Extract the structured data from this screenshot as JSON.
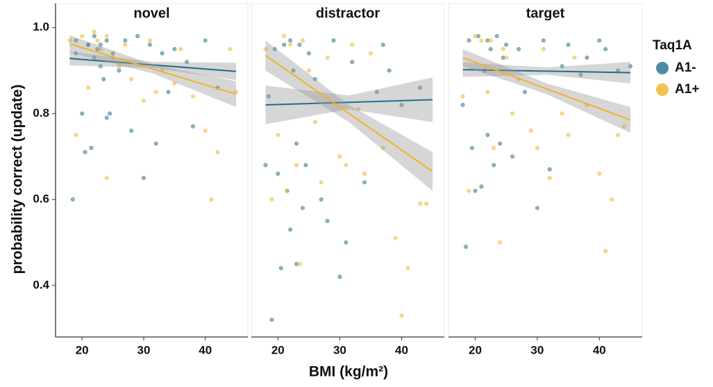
{
  "chart_data": [
    {
      "type": "scatter",
      "title": "novel",
      "xlim": [
        15.7,
        46.9
      ],
      "ylim": [
        0.28,
        1.056
      ],
      "xticks": [
        20,
        30,
        40
      ],
      "yticks": [
        {
          "value": 1.0,
          "label": "1.0"
        },
        0.8,
        0.6,
        0.4
      ],
      "series": [
        {
          "name": "A1-",
          "color": "#1f6e8c",
          "x": [
            18.5,
            19,
            20,
            20.5,
            21,
            21.5,
            22,
            22,
            22.5,
            23,
            23.5,
            24,
            24,
            24.5,
            25,
            26,
            27,
            28,
            29,
            30,
            31,
            32,
            33,
            34,
            35,
            37,
            38,
            40,
            42,
            19,
            21,
            23
          ],
          "values": [
            0.6,
            0.97,
            0.8,
            0.71,
            0.96,
            0.72,
            0.98,
            0.93,
            0.95,
            0.96,
            0.88,
            0.97,
            0.79,
            0.8,
            0.94,
            0.9,
            0.97,
            0.76,
            0.98,
            0.65,
            0.96,
            0.73,
            0.94,
            0.85,
            0.95,
            0.92,
            0.77,
            0.97,
            0.86,
            0.94,
            0.96,
            0.91
          ],
          "fit": {
            "x": [
              18,
              31.5,
              45
            ],
            "y": [
              0.928,
              0.913,
              0.898
            ],
            "lower": [
              0.912,
              0.906,
              0.878
            ],
            "upper": [
              0.944,
              0.92,
              0.918
            ]
          }
        },
        {
          "name": "A1+",
          "color": "#f0b323",
          "x": [
            18,
            19,
            20,
            21,
            22,
            22.5,
            23,
            24,
            24,
            25,
            26,
            27,
            28,
            30,
            31,
            32,
            33,
            35,
            36,
            38,
            40,
            41,
            42,
            44,
            45
          ],
          "values": [
            0.97,
            0.75,
            0.98,
            0.86,
            0.99,
            0.97,
            0.95,
            0.65,
            0.98,
            0.93,
            0.91,
            0.96,
            0.88,
            0.83,
            0.97,
            0.85,
            0.9,
            0.87,
            0.95,
            0.84,
            0.76,
            0.6,
            0.71,
            0.95,
            0.85
          ],
          "fit": {
            "x": [
              18,
              31.5,
              45
            ],
            "y": [
              0.962,
              0.9035,
              0.845
            ],
            "lower": [
              0.942,
              0.893,
              0.815
            ],
            "upper": [
              0.982,
              0.914,
              0.875
            ]
          }
        }
      ]
    },
    {
      "type": "scatter",
      "title": "distractor",
      "xlim": [
        15.7,
        46.9
      ],
      "ylim": [
        0.28,
        1.056
      ],
      "xticks": [
        20,
        30,
        40
      ],
      "series": [
        {
          "name": "A1-",
          "color": "#1f6e8c",
          "x": [
            18,
            18.5,
            19,
            19.5,
            20,
            20.5,
            21,
            21.5,
            22,
            22,
            22.5,
            23,
            23,
            23.5,
            24,
            24.5,
            25,
            26,
            27,
            28,
            29,
            30,
            31,
            32,
            34,
            36,
            37,
            38,
            40,
            43
          ],
          "values": [
            0.68,
            0.84,
            0.32,
            0.95,
            0.66,
            0.44,
            0.96,
            0.62,
            0.97,
            0.53,
            0.9,
            0.73,
            0.45,
            0.96,
            0.58,
            0.68,
            0.94,
            0.88,
            0.6,
            0.55,
            0.97,
            0.42,
            0.5,
            0.92,
            0.64,
            0.85,
            0.96,
            0.9,
            0.82,
            0.86
          ],
          "fit": {
            "x": [
              18,
              31.5,
              45
            ],
            "y": [
              0.82,
              0.826,
              0.832
            ],
            "lower": [
              0.775,
              0.81,
              0.78
            ],
            "upper": [
              0.865,
              0.842,
              0.884
            ]
          }
        },
        {
          "name": "A1+",
          "color": "#f0b323",
          "x": [
            18,
            19,
            20,
            21,
            21.5,
            22,
            23,
            23.5,
            24,
            25,
            26,
            27,
            28,
            30,
            31,
            32,
            33,
            34,
            35,
            37,
            39,
            40,
            41,
            43,
            44
          ],
          "values": [
            0.95,
            0.6,
            0.75,
            0.98,
            0.62,
            0.96,
            0.68,
            0.45,
            0.97,
            0.9,
            0.78,
            0.64,
            0.93,
            0.7,
            0.68,
            0.96,
            0.81,
            0.66,
            0.94,
            0.72,
            0.51,
            0.33,
            0.44,
            0.59,
            0.59
          ],
          "fit": {
            "x": [
              18,
              31.5,
              45
            ],
            "y": [
              0.935,
              0.8,
              0.665
            ],
            "lower": [
              0.9,
              0.78,
              0.62
            ],
            "upper": [
              0.97,
              0.82,
              0.71
            ]
          }
        }
      ]
    },
    {
      "type": "scatter",
      "title": "target",
      "xlim": [
        15.7,
        46.9
      ],
      "ylim": [
        0.28,
        1.056
      ],
      "xticks": [
        20,
        30,
        40
      ],
      "series": [
        {
          "name": "A1-",
          "color": "#1f6e8c",
          "x": [
            18,
            18.5,
            19,
            19.5,
            20,
            20.5,
            21,
            21.5,
            22,
            22,
            22.5,
            23,
            23.5,
            24,
            24.5,
            25,
            26,
            27,
            28,
            30,
            31,
            32,
            34,
            35,
            37,
            38,
            40,
            41,
            43,
            45
          ],
          "values": [
            0.82,
            0.49,
            0.97,
            0.72,
            0.62,
            0.98,
            0.63,
            0.9,
            0.97,
            0.75,
            0.95,
            0.68,
            0.98,
            0.73,
            0.93,
            0.96,
            0.7,
            0.95,
            0.85,
            0.58,
            0.97,
            0.67,
            0.91,
            0.96,
            0.89,
            0.93,
            0.97,
            0.95,
            0.9,
            0.91
          ],
          "fit": {
            "x": [
              18,
              31.5,
              45
            ],
            "y": [
              0.902,
              0.8985,
              0.895
            ],
            "lower": [
              0.885,
              0.89,
              0.87
            ],
            "upper": [
              0.919,
              0.907,
              0.92
            ]
          }
        },
        {
          "name": "A1+",
          "color": "#f0b323",
          "x": [
            18,
            19,
            20,
            21,
            22,
            22.5,
            23,
            24,
            24.5,
            25,
            26,
            27,
            29,
            30,
            31,
            32,
            34,
            35,
            36,
            38,
            40,
            41,
            42,
            43,
            44
          ],
          "values": [
            0.84,
            0.62,
            0.98,
            0.97,
            0.85,
            0.97,
            0.72,
            0.5,
            0.95,
            0.93,
            0.8,
            0.88,
            0.76,
            0.72,
            0.95,
            0.65,
            0.8,
            0.75,
            0.93,
            0.82,
            0.66,
            0.48,
            0.6,
            0.75,
            0.77
          ],
          "fit": {
            "x": [
              18,
              31.5,
              45
            ],
            "y": [
              0.93,
              0.8575,
              0.785
            ],
            "lower": [
              0.91,
              0.845,
              0.755
            ],
            "upper": [
              0.95,
              0.87,
              0.815
            ]
          }
        }
      ]
    }
  ],
  "xlabel": "BMI (kg/m²)",
  "ylabel": "probability correct (update)",
  "legend_title": "Taq1A"
}
